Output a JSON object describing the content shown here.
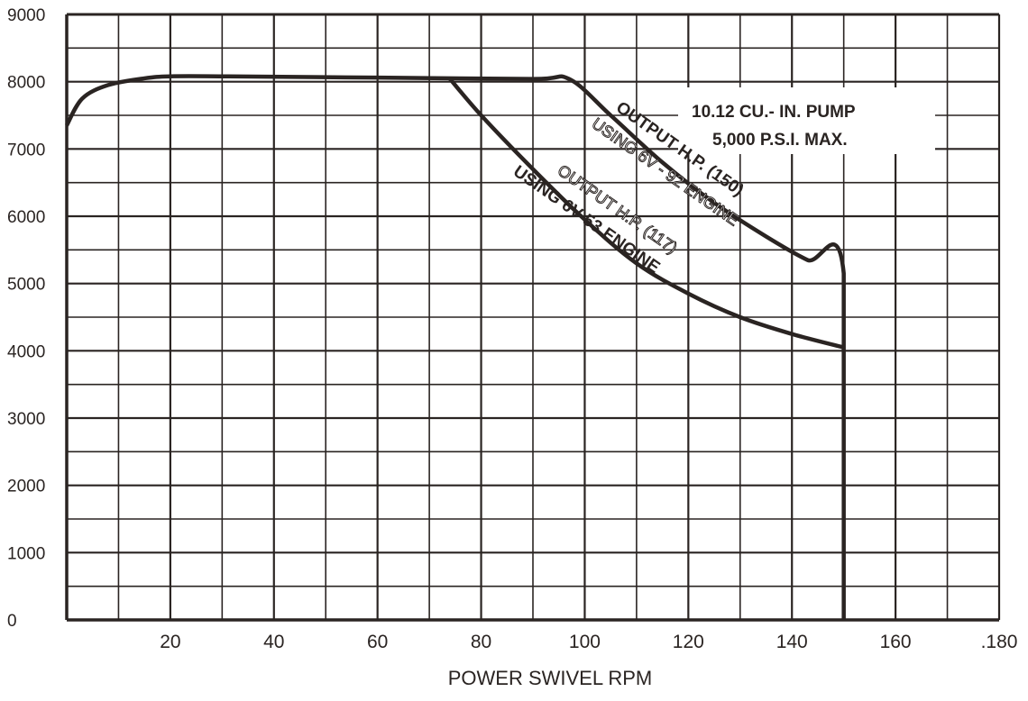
{
  "chart_data": {
    "type": "line",
    "title": "",
    "xlabel": "POWER SWIVEL RPM",
    "ylabel": "",
    "xlim": [
      0,
      180
    ],
    "ylim": [
      0,
      9000
    ],
    "grid": true,
    "x_ticks": [
      20,
      40,
      60,
      80,
      100,
      120,
      140,
      160,
      180
    ],
    "x_tick_labels": [
      "20",
      "40",
      "60",
      "80",
      "100",
      "120",
      "140",
      "160",
      ".180"
    ],
    "y_ticks": [
      0,
      1000,
      2000,
      3000,
      4000,
      5000,
      6000,
      7000,
      8000,
      9000
    ],
    "y_tick_labels": [
      "0",
      "1000",
      "2000",
      "3000",
      "4000",
      "5000",
      "6000",
      "7000",
      "8000",
      "9000"
    ],
    "series": [
      {
        "name": "OUTPUT H.P. (150) USING 6V-92 ENGINE",
        "x": [
          0,
          3,
          8,
          15,
          20,
          30,
          60,
          90,
          97,
          105,
          115,
          125,
          135,
          143,
          150,
          150
        ],
        "y": [
          7350,
          7750,
          7950,
          8050,
          8080,
          8080,
          8060,
          8040,
          8040,
          7500,
          6800,
          6200,
          5700,
          5350,
          5150,
          0
        ]
      },
      {
        "name": "OUTPUT H.P. (117) USING 6V-53 ENGINE",
        "x": [
          74,
          80,
          90,
          100,
          110,
          120,
          130,
          140,
          150
        ],
        "y": [
          8040,
          7500,
          6700,
          5950,
          5300,
          4850,
          4500,
          4250,
          4050
        ]
      }
    ],
    "annotations": {
      "pump_line1": "10.12 CU.- IN. PUMP",
      "pump_line2": "5,000 P.S.I.  MAX.",
      "hp150": "OUTPUT  H.P. (150)",
      "engine92": "USING  6V - 92 ENGINE",
      "hp117": "OUTPUT H.P. (117)",
      "engine53": "USING 6V-53 ENGINE"
    }
  }
}
